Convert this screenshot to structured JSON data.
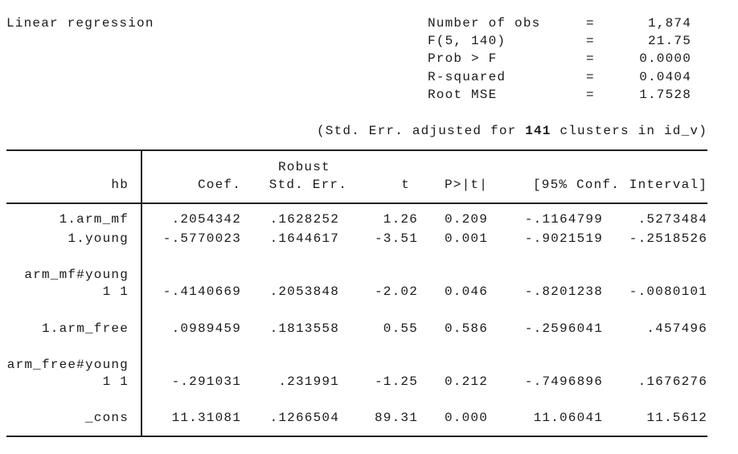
{
  "header": {
    "title": "Linear regression",
    "stats": [
      [
        "Number of obs",
        "=",
        "1,874"
      ],
      [
        "F(5, 140)",
        "=",
        "21.75"
      ],
      [
        "Prob > F",
        "=",
        "0.0000"
      ],
      [
        "R-squared",
        "=",
        "0.0404"
      ],
      [
        "Root MSE",
        "=",
        "1.7528"
      ]
    ]
  },
  "note": {
    "before": "(Std. Err. adjusted for",
    "clusters": "141",
    "after": "clusters in id_v)"
  },
  "table": {
    "super_header": "Robust",
    "columns": [
      "hb",
      "Coef.",
      "Std. Err.",
      "t",
      "P>|t|",
      "[95% Conf.",
      "Interval]"
    ],
    "rows": [
      [
        "1.arm_mf",
        ".2054342",
        ".1628252",
        "1.26",
        "0.209",
        "-.1164799",
        ".5273484"
      ],
      [
        "1.young",
        "-.5770023",
        ".1644617",
        "-3.51",
        "0.001",
        "-.9021519",
        "-.2518526"
      ],
      [
        "arm_mf#young"
      ],
      [
        "1 1",
        "-.4140669",
        ".2053848",
        "-2.02",
        "0.046",
        "-.8201238",
        "-.0080101"
      ],
      [
        "1.arm_free",
        ".0989459",
        ".1813558",
        "0.55",
        "0.586",
        "-.2596041",
        ".457496"
      ],
      [
        "arm_free#young"
      ],
      [
        "1 1",
        "-.291031",
        ".231991",
        "-1.25",
        "0.212",
        "-.7496896",
        ".1676276"
      ],
      [
        "_cons",
        "11.31081",
        ".1266504",
        "89.31",
        "0.000",
        "11.06041",
        "11.5612"
      ]
    ]
  }
}
